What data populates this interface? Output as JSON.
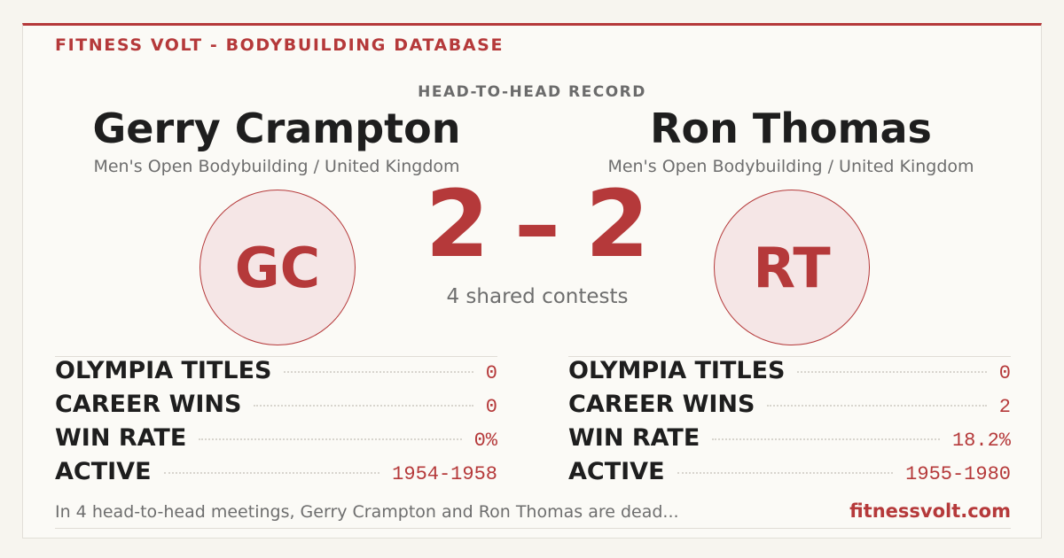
{
  "header": {
    "brand": "FITNESS VOLT - BODYBUILDING DATABASE",
    "title": "HEAD-TO-HEAD RECORD"
  },
  "left": {
    "name": "Gerry Crampton",
    "subtitle": "Men's Open Bodybuilding / United Kingdom",
    "initials": "GC",
    "stats": [
      {
        "label": "OLYMPIA TITLES",
        "value": "0"
      },
      {
        "label": "CAREER WINS",
        "value": "0"
      },
      {
        "label": "WIN RATE",
        "value": "0%"
      },
      {
        "label": "ACTIVE",
        "value": "1954-1958"
      }
    ]
  },
  "right": {
    "name": "Ron Thomas",
    "subtitle": "Men's Open Bodybuilding / United Kingdom",
    "initials": "RT",
    "stats": [
      {
        "label": "OLYMPIA TITLES",
        "value": "0"
      },
      {
        "label": "CAREER WINS",
        "value": "2"
      },
      {
        "label": "WIN RATE",
        "value": "18.2%"
      },
      {
        "label": "ACTIVE",
        "value": "1955-1980"
      }
    ]
  },
  "score": {
    "left": 2,
    "separator": "–",
    "right": 2,
    "caption": "4 shared contests"
  },
  "footer": {
    "text": "In 4 head-to-head meetings, Gerry Crampton and Ron Thomas are dead...",
    "site": "fitnessvolt.com"
  }
}
